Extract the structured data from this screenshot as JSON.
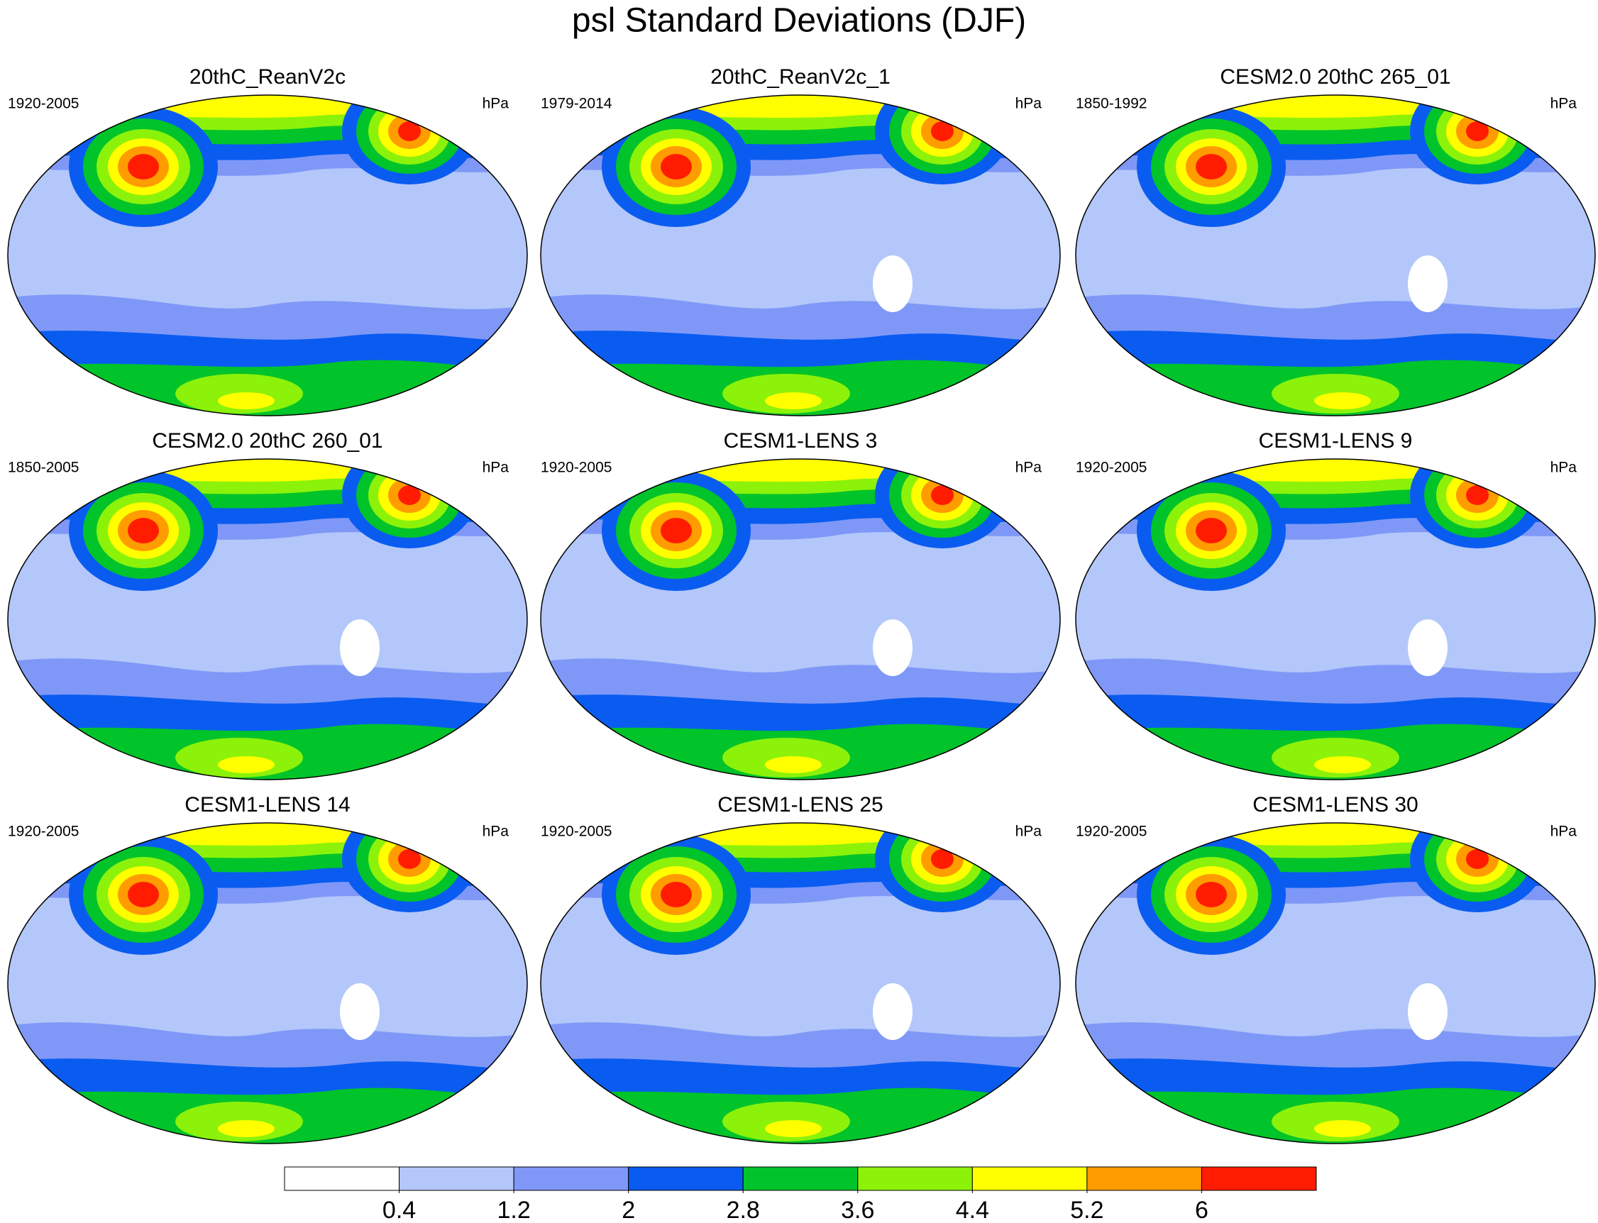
{
  "title": "psl Standard Deviations (DJF)",
  "panels": [
    {
      "title": "20thC_ReanV2c",
      "period": "1920-2005",
      "units": "hPa"
    },
    {
      "title": "20thC_ReanV2c_1",
      "period": "1979-2014",
      "units": "hPa"
    },
    {
      "title": "CESM2.0 20thC 265_01",
      "period": "1850-1992",
      "units": "hPa"
    },
    {
      "title": "CESM2.0 20thC 260_01",
      "period": "1850-2005",
      "units": "hPa"
    },
    {
      "title": "CESM1-LENS 3",
      "period": "1920-2005",
      "units": "hPa"
    },
    {
      "title": "CESM1-LENS 9",
      "period": "1920-2005",
      "units": "hPa"
    },
    {
      "title": "CESM1-LENS 14",
      "period": "1920-2005",
      "units": "hPa"
    },
    {
      "title": "CESM1-LENS 25",
      "period": "1920-2005",
      "units": "hPa"
    },
    {
      "title": "CESM1-LENS 30",
      "period": "1920-2005",
      "units": "hPa"
    }
  ],
  "colorbar": {
    "colors": [
      "#ffffff",
      "#b3c7fa",
      "#7f98f7",
      "#0a5cf0",
      "#00c42a",
      "#8cf20a",
      "#ffff00",
      "#ff9c00",
      "#ff1c00"
    ],
    "ticks": [
      0.4,
      1.2,
      2,
      2.8,
      3.6,
      4.4,
      5.2,
      6
    ]
  }
}
